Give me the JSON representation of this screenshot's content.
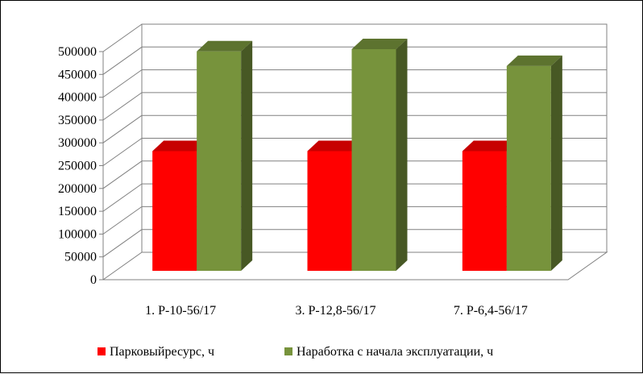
{
  "chart_data": {
    "type": "bar",
    "categories": [
      "1. Р-10-56/17",
      "3. Р-12,8-56/17",
      "7. Р-6,4-56/17"
    ],
    "series": [
      {
        "name": "Парковыйресурс, ч",
        "values": [
          270000,
          270000,
          270000
        ],
        "color": "#ff0000"
      },
      {
        "name": "Наработка с начала эксплуатации, ч",
        "values": [
          495000,
          500000,
          462000
        ],
        "color": "#77933c"
      }
    ],
    "ylim": [
      0,
      500000
    ],
    "yticks": [
      "0",
      "50000",
      "100000",
      "150000",
      "200000",
      "250000",
      "300000",
      "350000",
      "400000",
      "450000",
      "500000"
    ],
    "grid": true,
    "legend_position": "bottom",
    "three_d": true
  }
}
